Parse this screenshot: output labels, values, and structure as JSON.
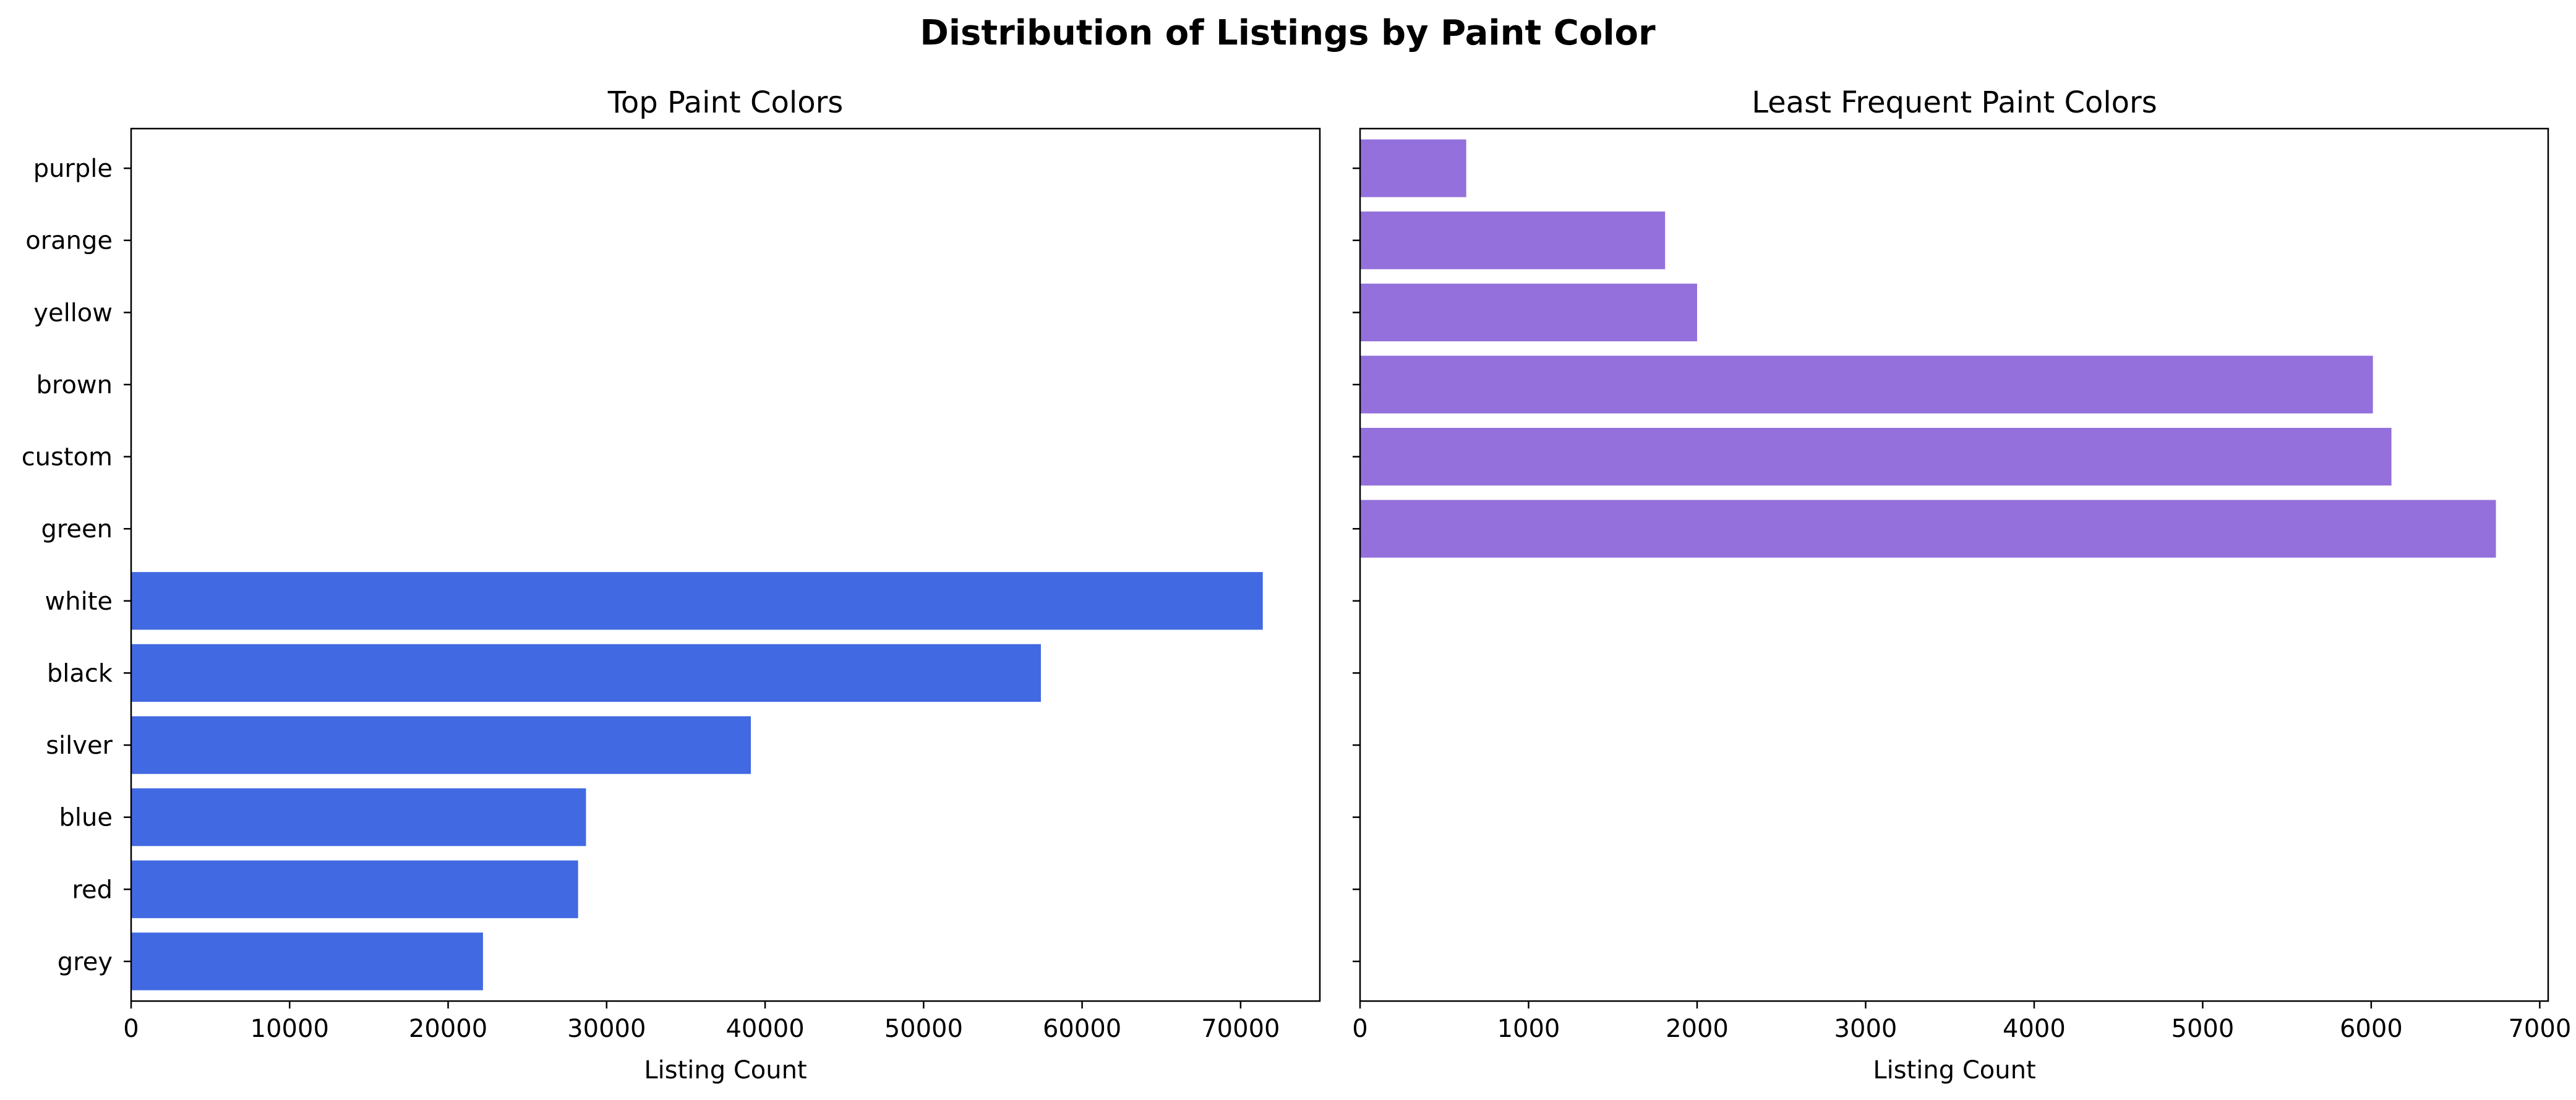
{
  "figure_title": "Distribution of Listings by Paint Color",
  "colors": {
    "left_bar": "#4169E1",
    "right_bar": "#9370DB",
    "axes": "#000000"
  },
  "categories": [
    "grey",
    "red",
    "blue",
    "silver",
    "black",
    "white",
    "green",
    "custom",
    "brown",
    "yellow",
    "orange",
    "purple"
  ],
  "chart_data": [
    {
      "type": "bar",
      "orientation": "horizontal",
      "title": "Top Paint Colors",
      "xlabel": "Listing Count",
      "ylabel": "",
      "xlim": [
        0,
        75000
      ],
      "xticks": [
        0,
        10000,
        20000,
        30000,
        40000,
        50000,
        60000,
        70000
      ],
      "show_ytick_labels": true,
      "categories": [
        "grey",
        "red",
        "blue",
        "silver",
        "black",
        "white"
      ],
      "values": [
        22200,
        28200,
        28700,
        39100,
        57400,
        71400
      ]
    },
    {
      "type": "bar",
      "orientation": "horizontal",
      "title": "Least Frequent Paint Colors",
      "xlabel": "Listing Count",
      "ylabel": "",
      "xlim": [
        0,
        7050
      ],
      "xticks": [
        0,
        1000,
        2000,
        3000,
        4000,
        5000,
        6000,
        7000
      ],
      "show_ytick_labels": false,
      "categories": [
        "green",
        "custom",
        "brown",
        "yellow",
        "orange",
        "purple"
      ],
      "values": [
        6740,
        6120,
        6010,
        2000,
        1810,
        630
      ]
    }
  ]
}
